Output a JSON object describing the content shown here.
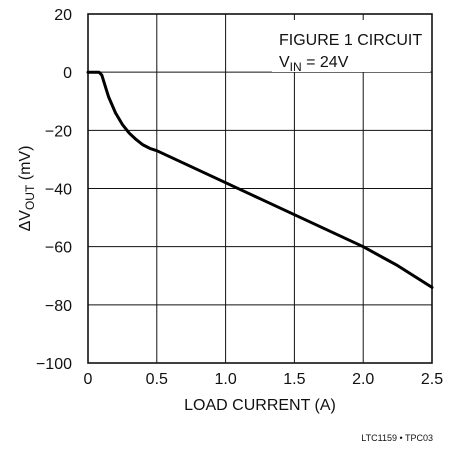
{
  "chart_data": {
    "type": "line",
    "xlabel": "LOAD CURRENT (A)",
    "ylabel": {
      "prefix": "ΔV",
      "subscript": "OUT",
      "suffix": " (mV)"
    },
    "xlim": [
      0,
      2.5
    ],
    "ylim": [
      -100,
      20
    ],
    "x_ticks": [
      "0",
      "0.5",
      "1.0",
      "1.5",
      "2.0",
      "2.5"
    ],
    "x_tick_values": [
      0,
      0.5,
      1.0,
      1.5,
      2.0,
      2.5
    ],
    "y_ticks": [
      "20",
      "0",
      "−20",
      "−40",
      "−60",
      "−80",
      "−100"
    ],
    "y_tick_values": [
      20,
      0,
      -20,
      -40,
      -60,
      -80,
      -100
    ],
    "grid": true,
    "annotation": {
      "line1": "FIGURE 1 CIRCUIT",
      "line2_prefix": "V",
      "line2_subscript": "IN",
      "line2_suffix": " = 24V"
    },
    "series": [
      {
        "x": [
          0,
          0.08,
          0.1,
          0.12,
          0.15,
          0.2,
          0.25,
          0.3,
          0.35,
          0.4,
          0.45,
          0.5,
          0.75,
          1.0,
          1.25,
          1.5,
          1.75,
          2.0,
          2.25,
          2.5
        ],
        "y": [
          0,
          0,
          -1,
          -4,
          -8.5,
          -14,
          -18,
          -21,
          -23.2,
          -25,
          -26.2,
          -27,
          -32.5,
          -38,
          -43.5,
          -49,
          -54.5,
          -60,
          -66.5,
          -74
        ]
      }
    ]
  },
  "footer_code": "LTC1159 • TPC03"
}
